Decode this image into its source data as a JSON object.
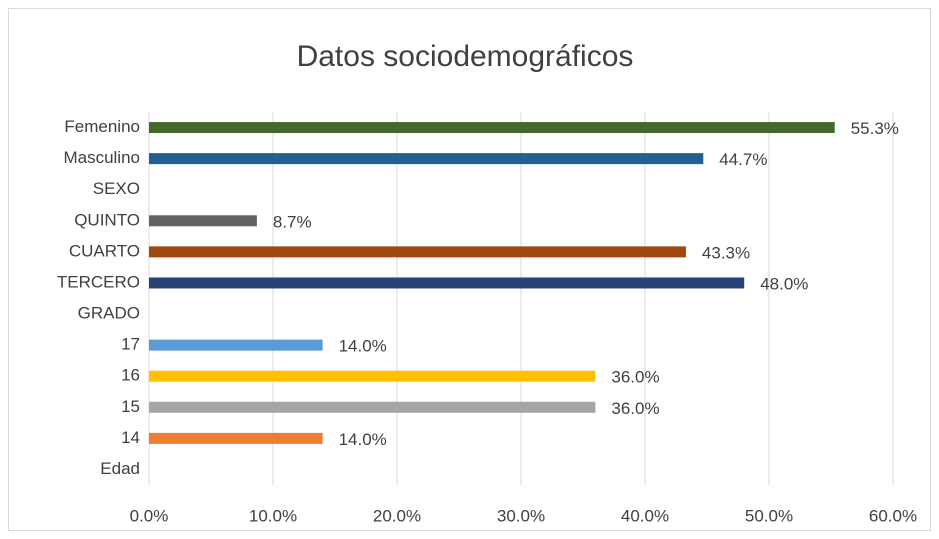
{
  "chart_data": {
    "type": "bar",
    "orientation": "horizontal",
    "title": "Datos sociodemográficos",
    "categories": [
      "Femenino",
      "Masculino",
      "SEXO",
      "QUINTO",
      "CUARTO",
      "TERCERO",
      "GRADO",
      "17",
      "16",
      "15",
      "14",
      "Edad"
    ],
    "values": [
      55.3,
      44.7,
      null,
      8.7,
      43.3,
      48.0,
      null,
      14.0,
      36.0,
      36.0,
      14.0,
      null
    ],
    "value_labels": [
      "55.3%",
      "44.7%",
      null,
      "8.7%",
      "43.3%",
      "48.0%",
      null,
      "14.0%",
      "36.0%",
      "36.0%",
      "14.0%",
      null
    ],
    "colors": [
      "#43682b",
      "#255e91",
      null,
      "#636363",
      "#9e480e",
      "#264478",
      null,
      "#5b9bd5",
      "#ffc000",
      "#a5a5a5",
      "#ed7d31",
      null
    ],
    "xlim": [
      0,
      60
    ],
    "xticks": [
      {
        "value": 0,
        "label": "0.0%"
      },
      {
        "value": 10,
        "label": "10.0%"
      },
      {
        "value": 20,
        "label": "20.0%"
      },
      {
        "value": 30,
        "label": "30.0%"
      },
      {
        "value": 40,
        "label": "40.0%"
      },
      {
        "value": 50,
        "label": "50.0%"
      },
      {
        "value": 60,
        "label": "60.0%"
      }
    ],
    "grid": true
  }
}
